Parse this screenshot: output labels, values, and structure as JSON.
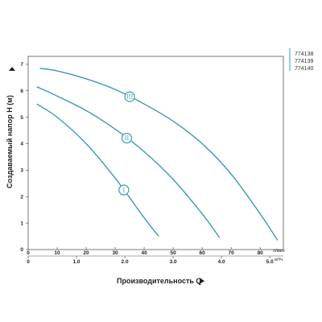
{
  "chart_data": {
    "type": "line",
    "title": "",
    "xlabel": "Производительность Q",
    "ylabel": "Создаваемый напор Н (м)",
    "x_unit_top": "л/мин",
    "x_unit_bottom": "м³/ч",
    "x_ticks_lpm": [
      0,
      10,
      20,
      30,
      40,
      50,
      60,
      70,
      80
    ],
    "x_ticks_m3h": [
      "0",
      "1.0",
      "2.0",
      "3.0",
      "4.0",
      "5.0"
    ],
    "y_ticks": [
      0,
      1,
      2,
      3,
      4,
      5,
      6,
      7
    ],
    "xlim": [
      0,
      88
    ],
    "ylim": [
      0,
      7.3
    ],
    "grid": false,
    "curve_color": "#3a9bb0",
    "legend": [
      "774138",
      "774139",
      "774140"
    ],
    "series": [
      {
        "name": "I",
        "x": [
          3,
          10,
          20,
          30,
          40,
          45
        ],
        "y": [
          5.5,
          5.0,
          4.0,
          2.7,
          1.2,
          0.5
        ]
      },
      {
        "name": "II",
        "x": [
          3,
          10,
          20,
          30,
          40,
          50,
          60,
          66
        ],
        "y": [
          6.15,
          5.8,
          5.25,
          4.55,
          3.7,
          2.65,
          1.35,
          0.45
        ]
      },
      {
        "name": "III",
        "x": [
          4,
          10,
          20,
          30,
          40,
          50,
          60,
          70,
          80,
          86
        ],
        "y": [
          6.85,
          6.75,
          6.45,
          6.05,
          5.5,
          4.85,
          4.0,
          2.85,
          1.35,
          0.35
        ]
      }
    ]
  }
}
